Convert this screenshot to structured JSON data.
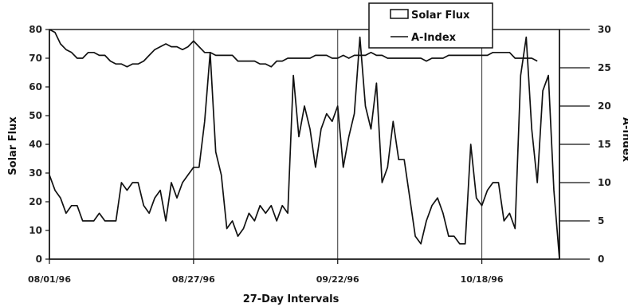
{
  "chart_data": {
    "type": "line",
    "title": "",
    "xlabel": "27-Day Intervals",
    "ylabel_left": "Solar Flux",
    "ylabel_right": "A-Index",
    "ylim_left": [
      0,
      80
    ],
    "ylim_right": [
      0,
      30
    ],
    "yticks_left": [
      0,
      10,
      20,
      30,
      40,
      50,
      60,
      70,
      80
    ],
    "yticks_right": [
      0,
      5,
      10,
      15,
      20,
      25,
      30
    ],
    "x_tick_labels": [
      "08/01/96",
      "08/27/96",
      "09/22/96",
      "10/18/96"
    ],
    "x_tick_days": [
      0,
      26,
      52,
      78
    ],
    "legend_position": "top-right",
    "grid": "vertical lines at 27-day interval boundaries",
    "series": [
      {
        "name": "Solar Flux",
        "axis": "left",
        "color": "#111111",
        "values": [
          80,
          79,
          75,
          73,
          72,
          70,
          70,
          72,
          72,
          71,
          71,
          69,
          68,
          68,
          67,
          68,
          68,
          69,
          71,
          73,
          74,
          75,
          74,
          74,
          73,
          74,
          76,
          74,
          72,
          72,
          71,
          71,
          71,
          71,
          69,
          69,
          69,
          69,
          68,
          68,
          67,
          69,
          69,
          70,
          70,
          70,
          70,
          70,
          71,
          71,
          71,
          70,
          70,
          71,
          70,
          71,
          71,
          71,
          72,
          71,
          71,
          70,
          70,
          70,
          70,
          70,
          70,
          70,
          69,
          70,
          70,
          70,
          71,
          71,
          71,
          71,
          71,
          71,
          71,
          71,
          72,
          72,
          72,
          72,
          70,
          70,
          70,
          70,
          69
        ]
      },
      {
        "name": "A-Index",
        "axis": "right",
        "color": "#111111",
        "values": [
          11,
          9,
          8,
          6,
          7,
          7,
          5,
          5,
          5,
          6,
          5,
          5,
          5,
          10,
          9,
          10,
          10,
          7,
          6,
          8,
          9,
          5,
          10,
          8,
          10,
          11,
          12,
          12,
          18,
          27,
          14,
          11,
          4,
          5,
          3,
          4,
          6,
          5,
          7,
          6,
          7,
          5,
          7,
          6,
          24,
          16,
          20,
          17,
          12,
          17,
          19,
          18,
          20,
          12,
          16,
          19,
          29,
          20,
          17,
          23,
          10,
          12,
          18,
          13,
          13,
          8,
          3,
          2,
          5,
          7,
          8,
          6,
          3,
          3,
          2,
          2,
          15,
          8,
          7,
          9,
          10,
          10,
          5,
          6,
          4,
          24,
          29,
          17,
          10,
          22,
          24,
          9,
          0
        ]
      }
    ]
  }
}
